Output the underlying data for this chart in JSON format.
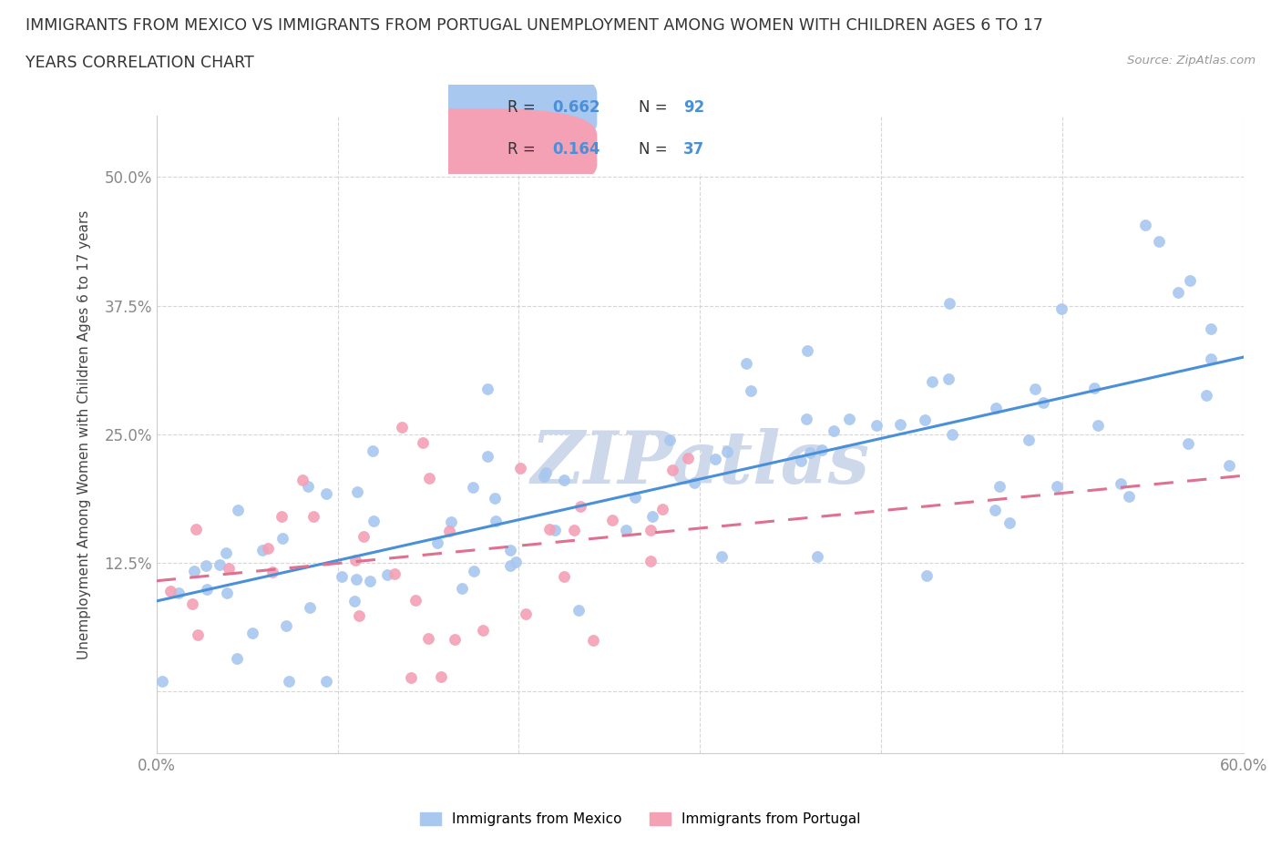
{
  "title_line1": "IMMIGRANTS FROM MEXICO VS IMMIGRANTS FROM PORTUGAL UNEMPLOYMENT AMONG WOMEN WITH CHILDREN AGES 6 TO 17",
  "title_line2": "YEARS CORRELATION CHART",
  "source": "Source: ZipAtlas.com",
  "ylabel": "Unemployment Among Women with Children Ages 6 to 17 years",
  "xlim": [
    0.0,
    0.6
  ],
  "ylim": [
    -0.06,
    0.56
  ],
  "x_ticks": [
    0.0,
    0.1,
    0.2,
    0.3,
    0.4,
    0.5,
    0.6
  ],
  "x_tick_labels": [
    "0.0%",
    "",
    "",
    "",
    "",
    "",
    "60.0%"
  ],
  "y_ticks": [
    0.0,
    0.125,
    0.25,
    0.375,
    0.5
  ],
  "y_tick_labels": [
    "",
    "12.5%",
    "25.0%",
    "37.5%",
    "50.0%"
  ],
  "mexico_color": "#a8c8f0",
  "portugal_color": "#f4a0b5",
  "mexico_R": 0.662,
  "mexico_N": 92,
  "portugal_R": 0.164,
  "portugal_N": 37,
  "trendline_mexico_color": "#4a90d9",
  "trendline_portugal_color": "#e07090",
  "watermark_color": "#cdd8ea",
  "background_color": "#ffffff",
  "legend_label_mexico": "Immigrants from Mexico",
  "legend_label_portugal": "Immigrants from Portugal"
}
